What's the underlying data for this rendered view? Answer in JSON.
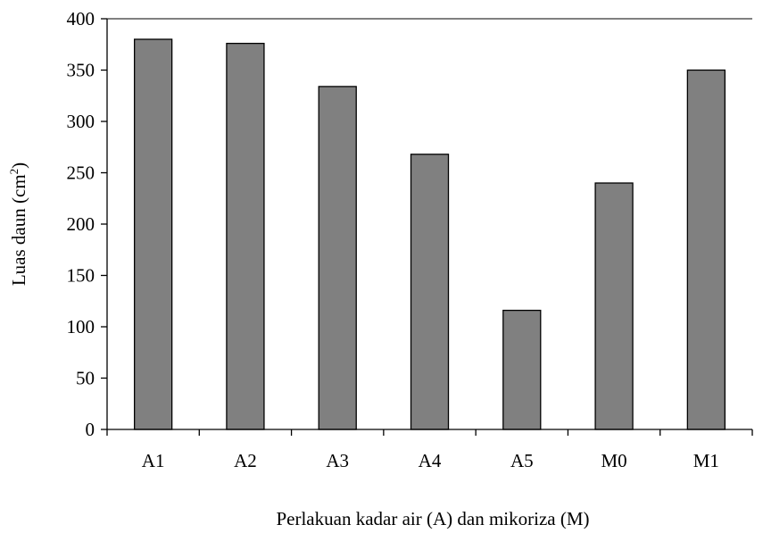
{
  "chart_data": {
    "type": "bar",
    "title": "",
    "xlabel": "Perlakuan kadar air (A) dan mikoriza (M)",
    "ylabel_main": "Luas daun (cm",
    "ylabel_sup": "2",
    "ylabel_end": ")",
    "categories": [
      "A1",
      "A2",
      "A3",
      "A4",
      "A5",
      "M0",
      "M1"
    ],
    "values": [
      380,
      376,
      334,
      268,
      116,
      240,
      350
    ],
    "ylim": [
      0,
      400
    ],
    "yticks": [
      0,
      50,
      100,
      150,
      200,
      250,
      300,
      350,
      400
    ],
    "grid": false,
    "legend": "none",
    "bar_color": "#808080",
    "bar_edge_color": "#000000"
  }
}
